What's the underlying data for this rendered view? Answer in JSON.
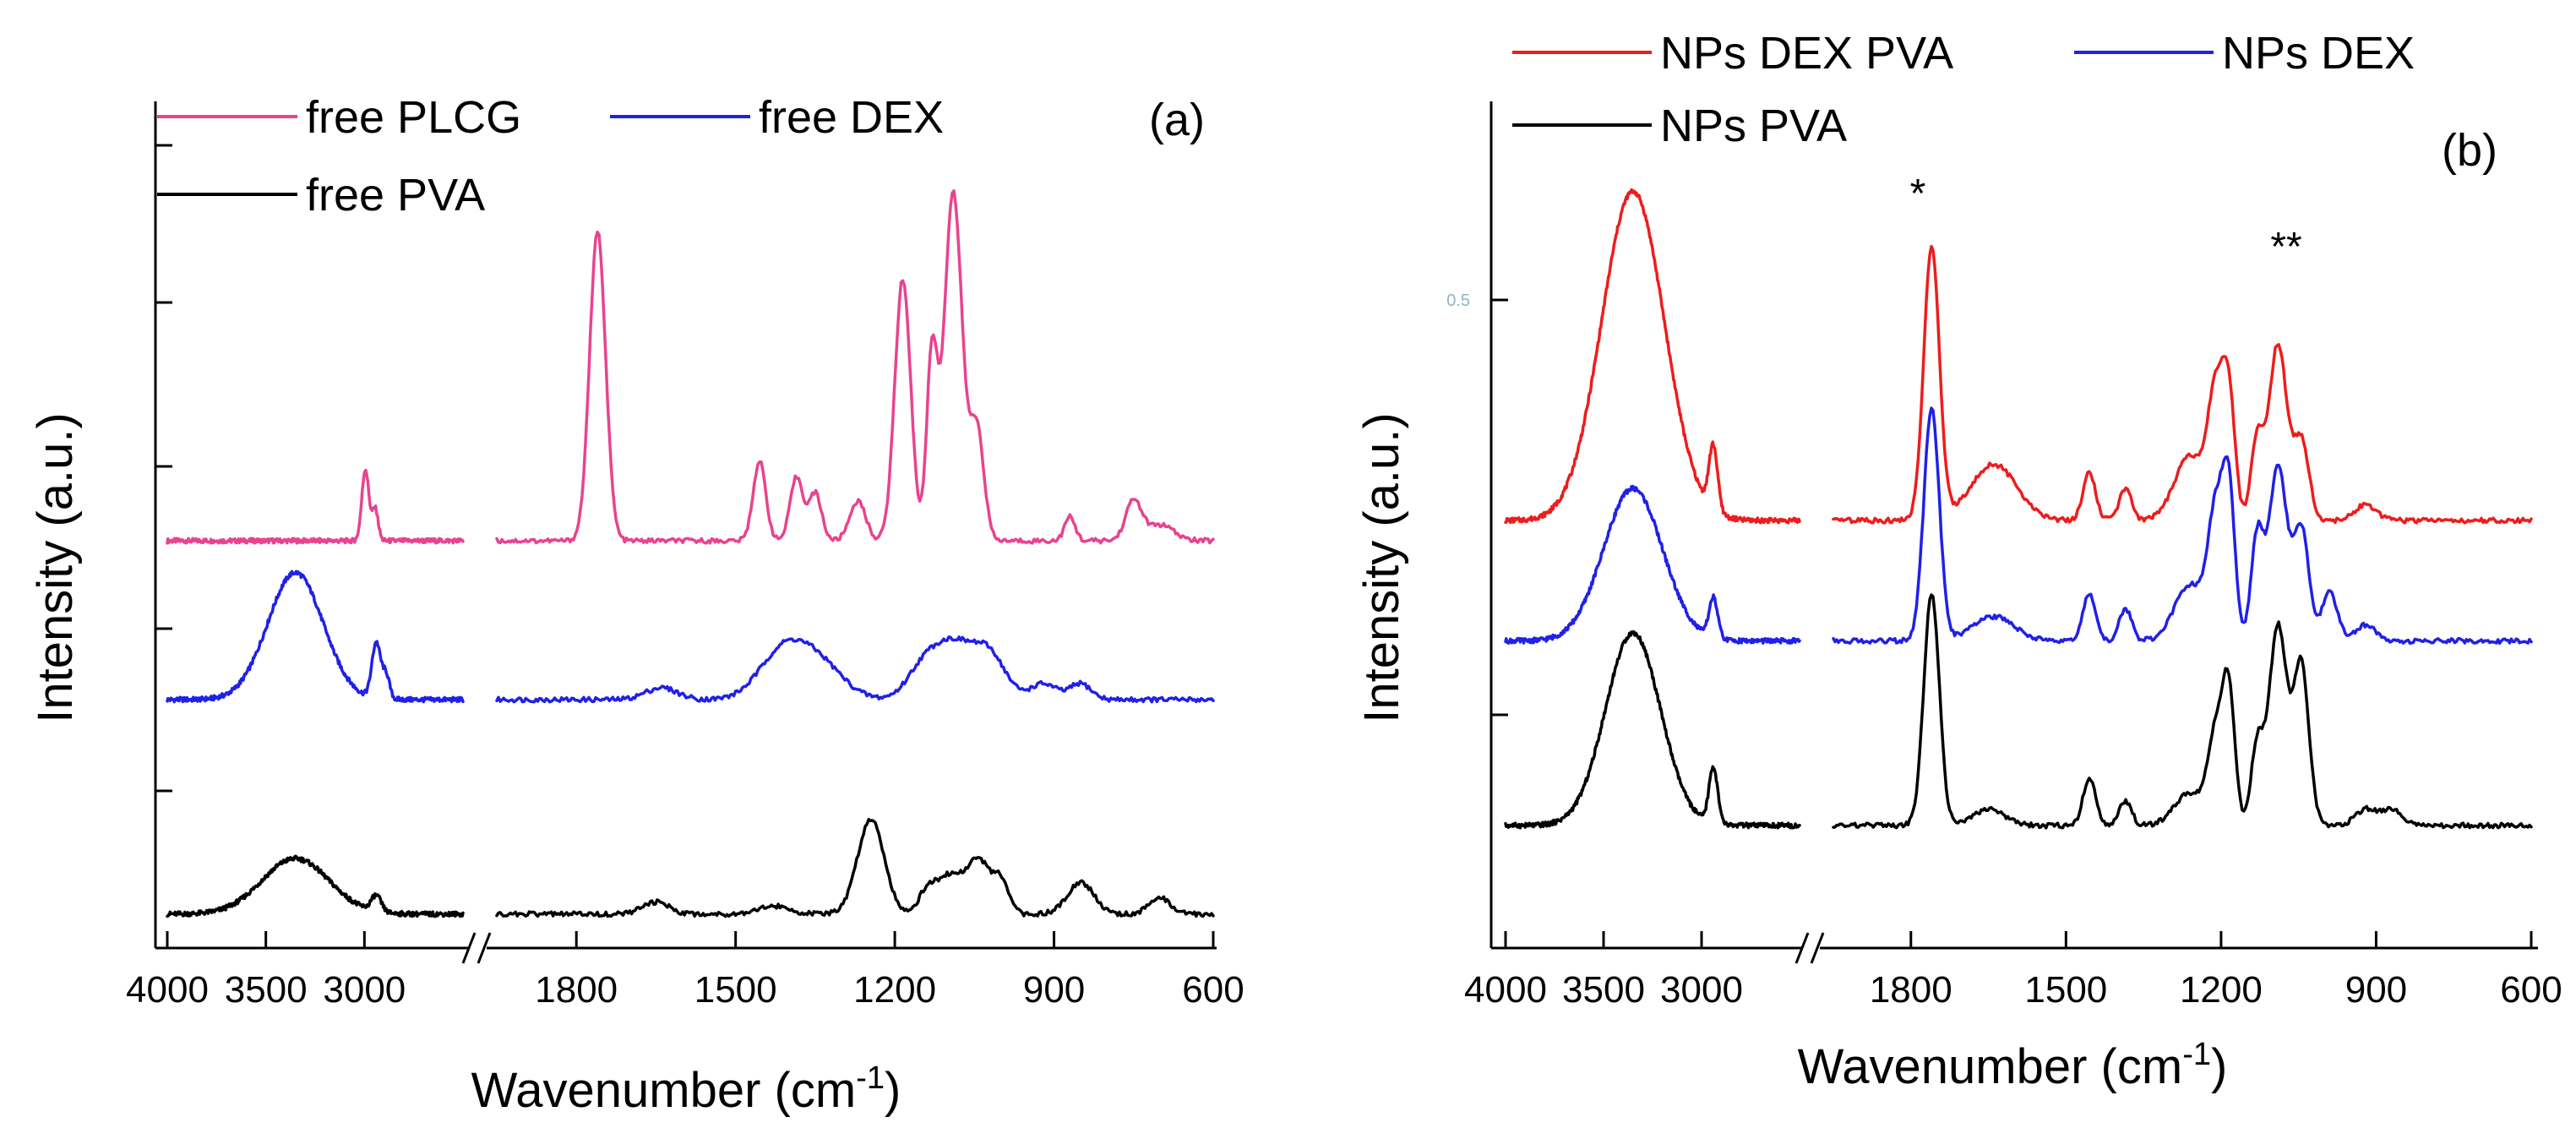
{
  "chart_data": [
    {
      "type": "line",
      "panel_label": "(a)",
      "xlabel": "Wavenumber (cm",
      "xlabel_sup": "-1",
      "xlabel_close": ")",
      "ylabel": "Intensity (a.u.)",
      "x_segments": [
        {
          "xlim": [
            4000,
            2500
          ],
          "ticks": [
            4000,
            3500,
            3000
          ]
        },
        {
          "xlim": [
            1950,
            600
          ],
          "ticks": [
            1800,
            1500,
            1200,
            900,
            600
          ]
        }
      ],
      "tick_labels": [
        "4000",
        "3500",
        "3000",
        "1800",
        "1500",
        "1200",
        "900",
        "600"
      ],
      "ylim": [
        0,
        1
      ],
      "legend": [
        {
          "name": "free PLCG",
          "color": "#e8438f"
        },
        {
          "name": "free DEX",
          "color": "#2020e8"
        },
        {
          "name": "free PVA",
          "color": "#000000"
        }
      ],
      "series": [
        {
          "name": "free PLCG",
          "color": "#e8438f",
          "baseline": 0.5,
          "peaks": [
            [
              2995,
              0.09,
              18
            ],
            [
              2945,
              0.04,
              15
            ],
            [
              1760,
              0.39,
              15
            ],
            [
              1455,
              0.1,
              12
            ],
            [
              1385,
              0.08,
              12
            ],
            [
              1350,
              0.06,
              12
            ],
            [
              1270,
              0.05,
              15
            ],
            [
              1185,
              0.33,
              15
            ],
            [
              1130,
              0.23,
              10
            ],
            [
              1090,
              0.44,
              17
            ],
            [
              1045,
              0.14,
              13
            ],
            [
              870,
              0.03,
              10
            ],
            [
              750,
              0.05,
              15
            ],
            [
              700,
              0.02,
              25
            ]
          ]
        },
        {
          "name": "free DEX",
          "color": "#2020e8",
          "baseline": 0.3,
          "peaks": [
            [
              3350,
              0.16,
              140
            ],
            [
              2940,
              0.07,
              22
            ],
            [
              2890,
              0.03,
              18
            ],
            [
              1640,
              0.015,
              30
            ],
            [
              1410,
              0.06,
              45
            ],
            [
              1340,
              0.04,
              45
            ],
            [
              1150,
              0.03,
              30
            ],
            [
              1090,
              0.07,
              40
            ],
            [
              1020,
              0.05,
              30
            ],
            [
              920,
              0.02,
              25
            ],
            [
              850,
              0.02,
              20
            ]
          ]
        },
        {
          "name": "free PVA",
          "color": "#000000",
          "baseline": 0.03,
          "peaks": [
            [
              3350,
              0.07,
              170
            ],
            [
              2940,
              0.02,
              25
            ],
            [
              1650,
              0.015,
              25
            ],
            [
              1430,
              0.01,
              30
            ],
            [
              1245,
              0.12,
              25
            ],
            [
              1140,
              0.02,
              15
            ],
            [
              1095,
              0.05,
              30
            ],
            [
              1040,
              0.06,
              20
            ],
            [
              1000,
              0.04,
              15
            ],
            [
              850,
              0.04,
              25
            ],
            [
              700,
              0.02,
              20
            ]
          ]
        }
      ]
    },
    {
      "type": "line",
      "panel_label": "(b)",
      "xlabel": "Wavenumber (cm",
      "xlabel_sup": "-1",
      "xlabel_close": ")",
      "ylabel": "Intensity (a.u.)",
      "ytick_stray_label": "0.5",
      "x_segments": [
        {
          "xlim": [
            4000,
            2500
          ],
          "ticks": [
            4000,
            3500,
            3000
          ]
        },
        {
          "xlim": [
            1950,
            600
          ],
          "ticks": [
            1800,
            1500,
            1200,
            900,
            600
          ]
        }
      ],
      "tick_labels": [
        "4000",
        "3500",
        "3000",
        "1800",
        "1500",
        "1200",
        "900",
        "600"
      ],
      "ylim": [
        0,
        1
      ],
      "annotations": [
        {
          "text": "*",
          "x": 1760
        },
        {
          "text": "**",
          "x": 1090
        }
      ],
      "legend": [
        {
          "name": "NPs DEX PVA",
          "color": "#ee1c1c"
        },
        {
          "name": "NPs DEX",
          "color": "#2020e8"
        },
        {
          "name": "NPs PVA",
          "color": "#000000"
        }
      ],
      "series": [
        {
          "name": "NPs DEX PVA",
          "color": "#ee1c1c",
          "baseline": 0.52,
          "peaks": [
            [
              3350,
              0.41,
              160
            ],
            [
              2940,
              0.08,
              22
            ],
            [
              1760,
              0.34,
              15
            ],
            [
              1640,
              0.07,
              45
            ],
            [
              1455,
              0.06,
              12
            ],
            [
              1385,
              0.04,
              12
            ],
            [
              1260,
              0.08,
              30
            ],
            [
              1210,
              0.15,
              15
            ],
            [
              1185,
              0.15,
              12
            ],
            [
              1130,
              0.1,
              12
            ],
            [
              1090,
              0.22,
              17
            ],
            [
              1045,
              0.1,
              15
            ],
            [
              920,
              0.02,
              20
            ]
          ]
        },
        {
          "name": "NPs DEX",
          "color": "#2020e8",
          "baseline": 0.37,
          "peaks": [
            [
              3350,
              0.19,
              150
            ],
            [
              2940,
              0.05,
              22
            ],
            [
              1760,
              0.29,
              15
            ],
            [
              1640,
              0.03,
              40
            ],
            [
              1455,
              0.06,
              12
            ],
            [
              1385,
              0.04,
              12
            ],
            [
              1260,
              0.07,
              30
            ],
            [
              1210,
              0.15,
              15
            ],
            [
              1185,
              0.18,
              12
            ],
            [
              1130,
              0.13,
              12
            ],
            [
              1090,
              0.22,
              17
            ],
            [
              1045,
              0.14,
              15
            ],
            [
              990,
              0.06,
              15
            ],
            [
              920,
              0.02,
              20
            ]
          ]
        },
        {
          "name": "NPs PVA",
          "color": "#000000",
          "baseline": 0.14,
          "peaks": [
            [
              3350,
              0.24,
              140
            ],
            [
              2940,
              0.07,
              22
            ],
            [
              1760,
              0.29,
              15
            ],
            [
              1650,
              0.02,
              30
            ],
            [
              1455,
              0.06,
              12
            ],
            [
              1385,
              0.03,
              12
            ],
            [
              1260,
              0.04,
              30
            ],
            [
              1210,
              0.11,
              15
            ],
            [
              1185,
              0.16,
              12
            ],
            [
              1130,
              0.1,
              12
            ],
            [
              1090,
              0.25,
              17
            ],
            [
              1045,
              0.2,
              15
            ],
            [
              920,
              0.02,
              20
            ],
            [
              870,
              0.02,
              20
            ]
          ]
        }
      ]
    }
  ]
}
